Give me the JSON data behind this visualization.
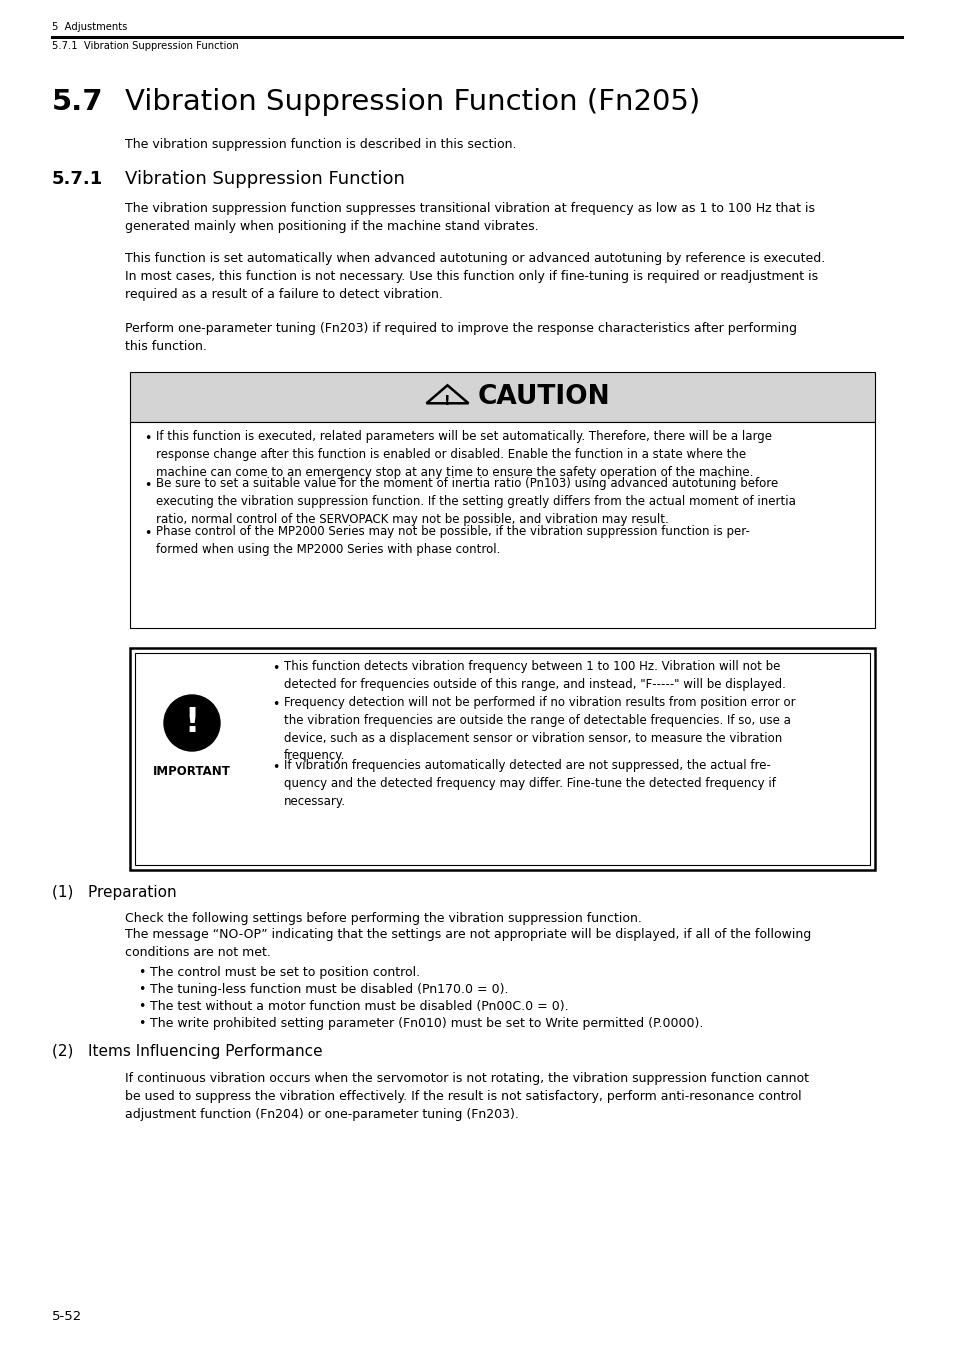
{
  "page_bg": "#ffffff",
  "header_line1": "5  Adjustments",
  "header_line2": "5.7.1  Vibration Suppression Function",
  "section_num": "5.7",
  "section_title_text": "Vibration Suppression Function (Fn205)",
  "section_intro": "The vibration suppression function is described in this section.",
  "subsection_num": "5.7.1",
  "subsection_title_text": "Vibration Suppression Function",
  "para1": "The vibration suppression function suppresses transitional vibration at frequency as low as 1 to 100 Hz that is\ngenerated mainly when positioning if the machine stand vibrates.",
  "para2": "This function is set automatically when advanced autotuning or advanced autotuning by reference is executed.\nIn most cases, this function is not necessary. Use this function only if fine-tuning is required or readjustment is\nrequired as a result of a failure to detect vibration.",
  "para3": "Perform one-parameter tuning (Fn203) if required to improve the response characteristics after performing\nthis function.",
  "caution_title": "CAUTION",
  "caution_bg": "#d4d4d4",
  "caution_bullets": [
    "If this function is executed, related parameters will be set automatically. Therefore, there will be a large\nresponse change after this function is enabled or disabled. Enable the function in a state where the\nmachine can come to an emergency stop at any time to ensure the safety operation of the machine.",
    "Be sure to set a suitable value for the moment of inertia ratio (Pn103) using advanced autotuning before\nexecuting the vibration suppression function. If the setting greatly differs from the actual moment of inertia\nratio, normal control of the SERVOPACK may not be possible, and vibration may result.",
    "Phase control of the MP2000 Series may not be possible, if the vibration suppression function is per-\nformed when using the MP2000 Series with phase control."
  ],
  "important_bullets": [
    "This function detects vibration frequency between 1 to 100 Hz. Vibration will not be\ndetected for frequencies outside of this range, and instead, \"F-----\" will be displayed.",
    "Frequency detection will not be performed if no vibration results from position error or\nthe vibration frequencies are outside the range of detectable frequencies. If so, use a\ndevice, such as a displacement sensor or vibration sensor, to measure the vibration\nfrequency.",
    "If vibration frequencies automatically detected are not suppressed, the actual fre-\nquency and the detected frequency may differ. Fine-tune the detected frequency if\nnecessary."
  ],
  "prep_heading": "(1)   Preparation",
  "prep_para1": "Check the following settings before performing the vibration suppression function.",
  "prep_para2": "The message “NO-OP” indicating that the settings are not appropriate will be displayed, if all of the following\nconditions are not met.",
  "prep_bullets": [
    "The control must be set to position control.",
    "The tuning-less function must be disabled (Pn170.0 = 0).",
    "The test without a motor function must be disabled (Pn00C.0 = 0).",
    "The write prohibited setting parameter (Fn010) must be set to Write permitted (P.0000)."
  ],
  "items_heading": "(2)   Items Influencing Performance",
  "items_para": "If continuous vibration occurs when the servomotor is not rotating, the vibration suppression function cannot\nbe used to suppress the vibration effectively. If the result is not satisfactory, perform anti-resonance control\nadjustment function (Fn204) or one-parameter tuning (Fn203).",
  "footer_text": "5-52"
}
